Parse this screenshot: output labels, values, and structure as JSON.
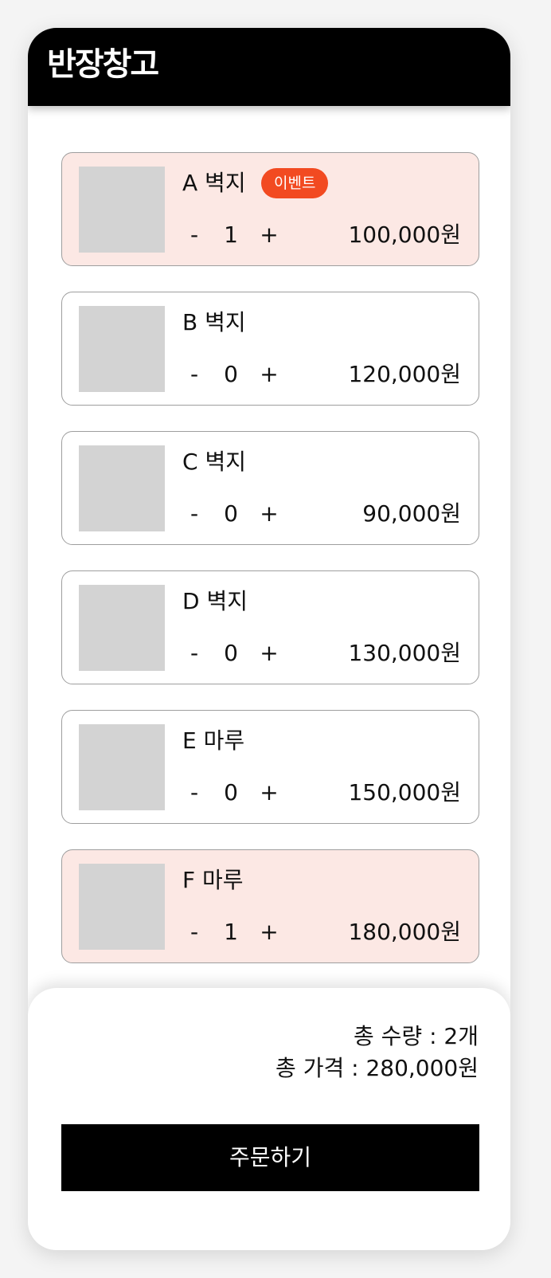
{
  "app": {
    "logo": "반장창고"
  },
  "products": [
    {
      "name": "A 벽지",
      "badge": "이벤트",
      "minus": "-",
      "quantity": "1",
      "plus": "+",
      "price": "100,000원",
      "selected": true
    },
    {
      "name": "B 벽지",
      "badge": null,
      "minus": "-",
      "quantity": "0",
      "plus": "+",
      "price": "120,000원",
      "selected": false
    },
    {
      "name": "C 벽지",
      "badge": null,
      "minus": "-",
      "quantity": "0",
      "plus": "+",
      "price": "90,000원",
      "selected": false
    },
    {
      "name": "D 벽지",
      "badge": null,
      "minus": "-",
      "quantity": "0",
      "plus": "+",
      "price": "130,000원",
      "selected": false
    },
    {
      "name": "E 마루",
      "badge": null,
      "minus": "-",
      "quantity": "0",
      "plus": "+",
      "price": "150,000원",
      "selected": false
    },
    {
      "name": "F 마루",
      "badge": null,
      "minus": "-",
      "quantity": "1",
      "plus": "+",
      "price": "180,000원",
      "selected": true
    }
  ],
  "summary": {
    "total_quantity": "총 수량 : 2개",
    "total_price": "총 가격 : 280,000원"
  },
  "order_button": "주문하기",
  "colors": {
    "header_bg": "#000000",
    "selected_card_bg": "#fce8e4",
    "badge_bg": "#f24a21",
    "thumbnail": "#d3d3d3",
    "order_button_bg": "#000000"
  }
}
